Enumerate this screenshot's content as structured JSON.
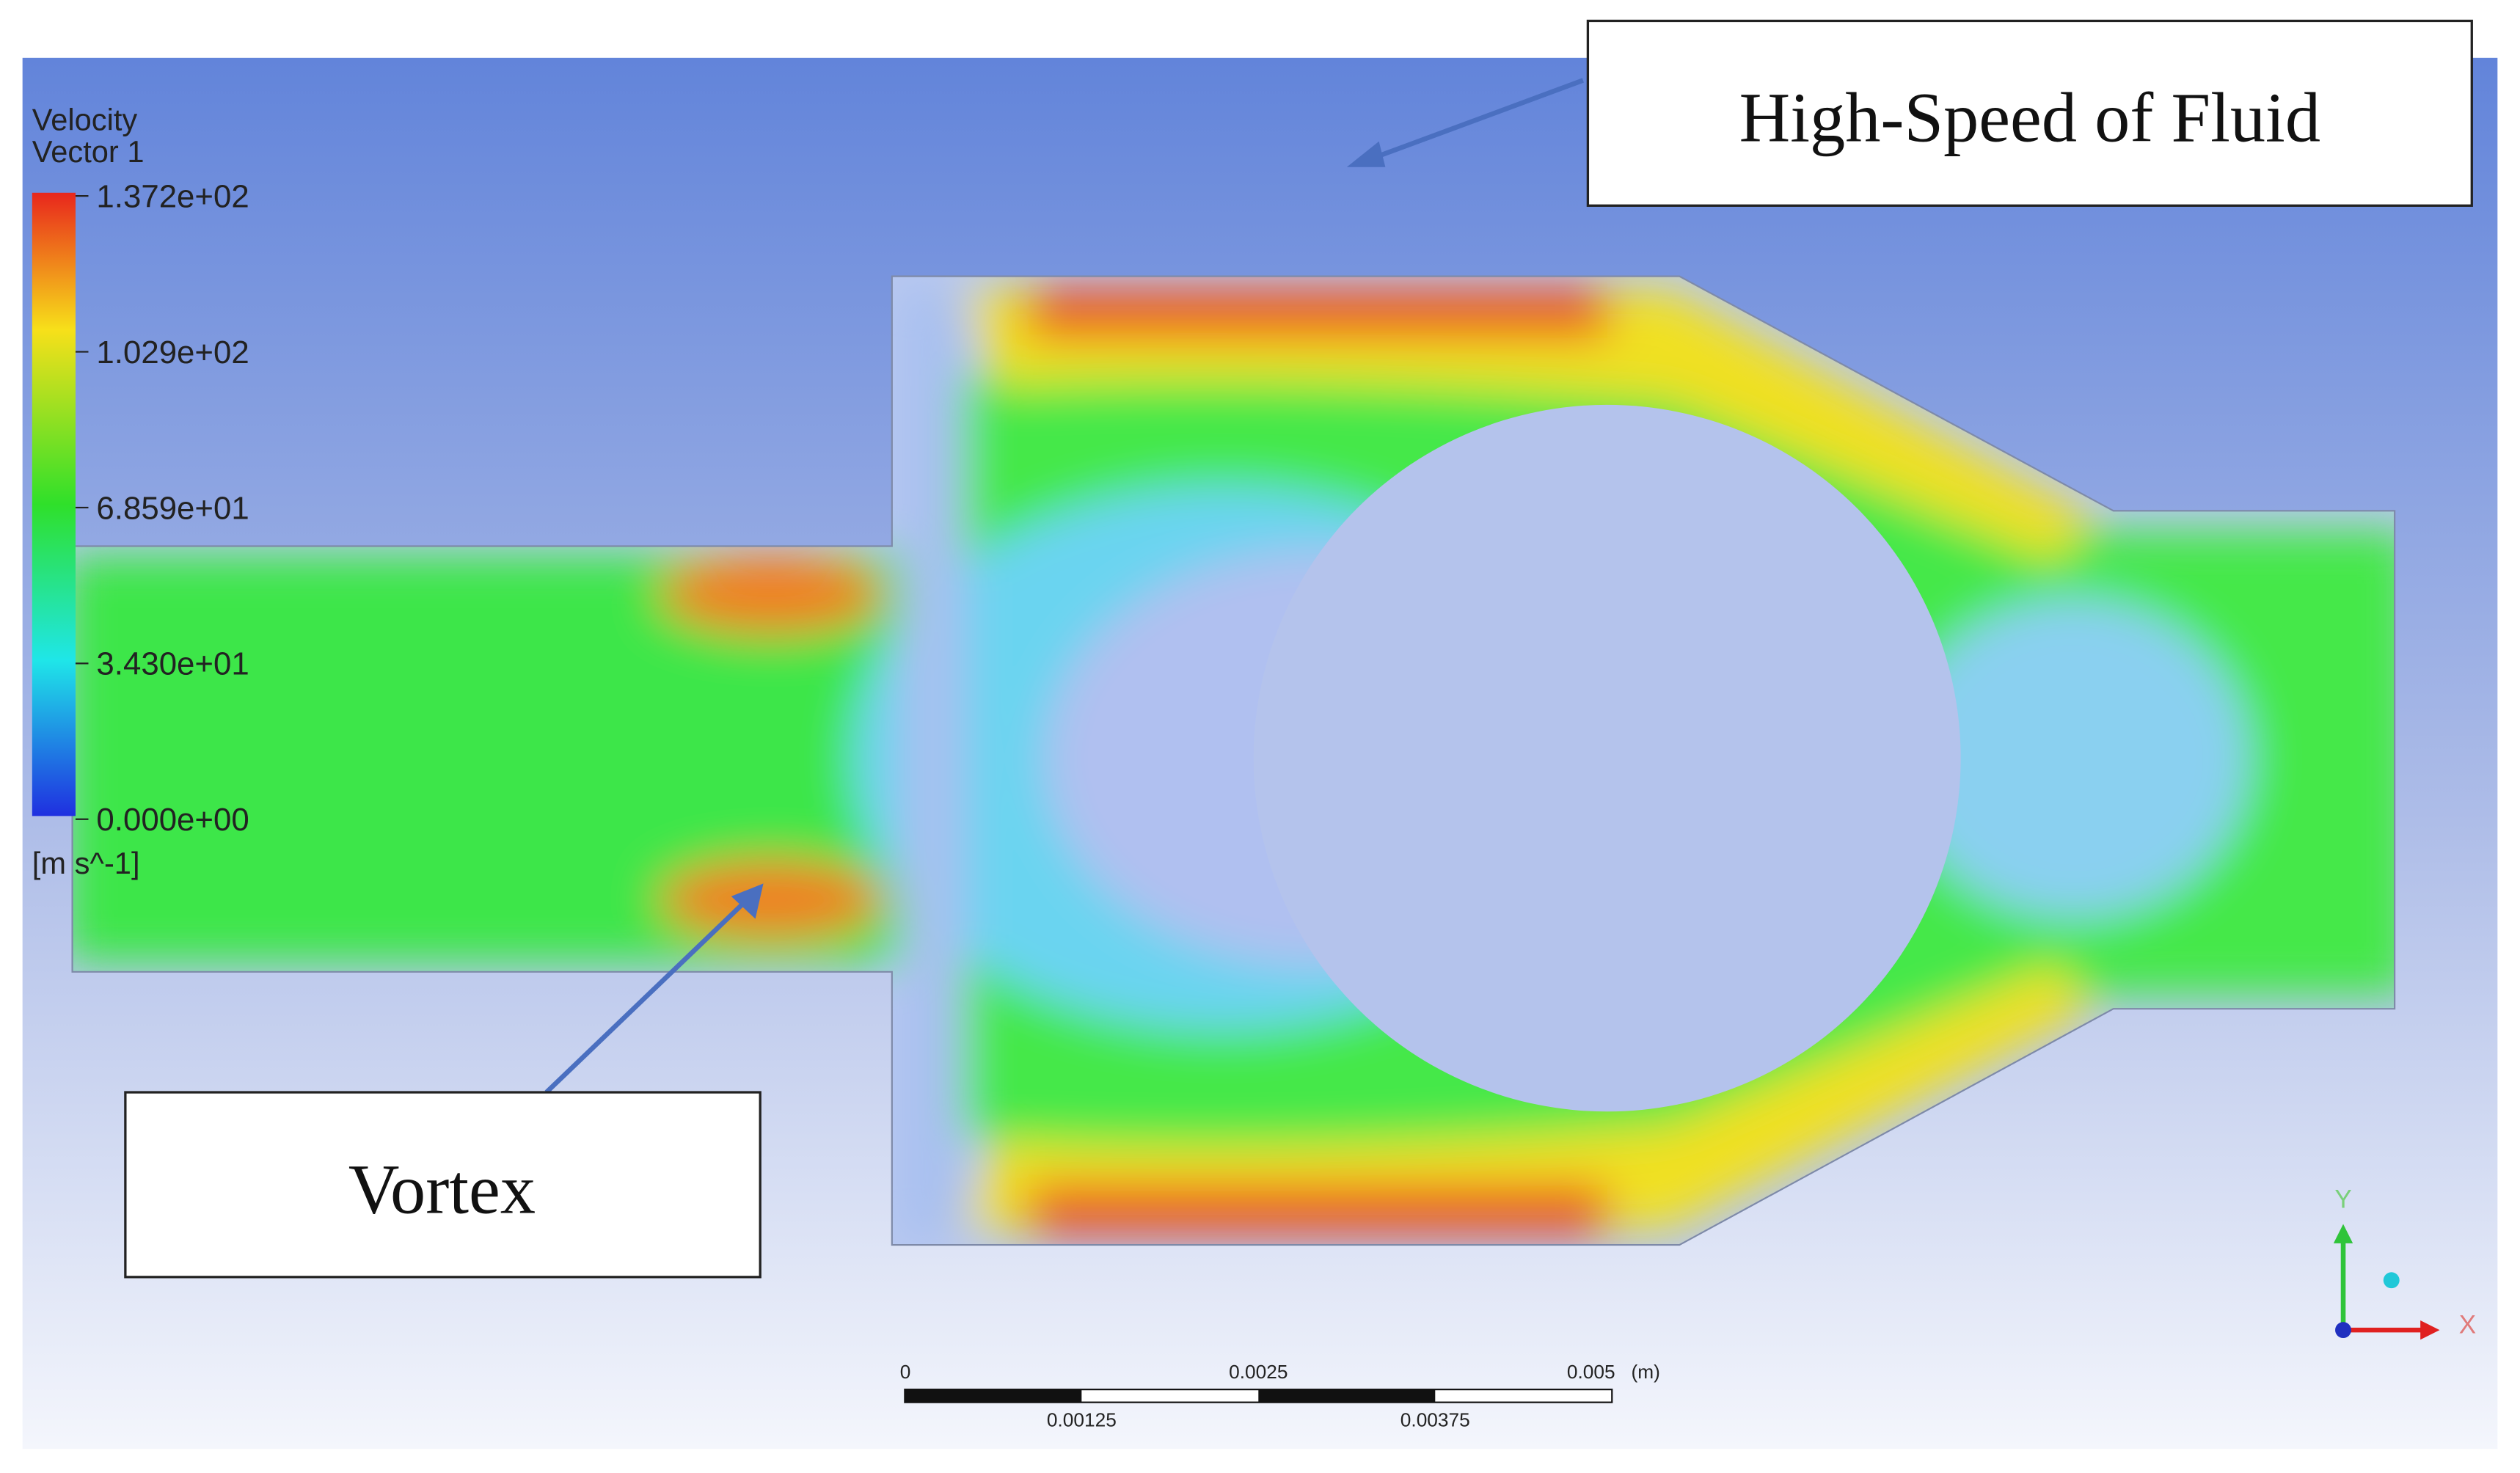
{
  "legend": {
    "title": [
      "Velocity",
      "Vector 1"
    ],
    "labels": [
      "1.372e+02",
      "1.029e+02",
      "6.859e+01",
      "3.430e+01",
      "0.000e+00"
    ],
    "unit": "[m s^-1]"
  },
  "annotations": {
    "high_speed": "High-Speed of Fluid",
    "vortex": "Vortex"
  },
  "scale_bar": {
    "top_labels": [
      "0",
      "0.0025",
      "0.005"
    ],
    "unit": "(m)",
    "bottom_labels": [
      "0.00125",
      "0.00375"
    ]
  },
  "axes": {
    "y": "Y",
    "x": "X"
  }
}
